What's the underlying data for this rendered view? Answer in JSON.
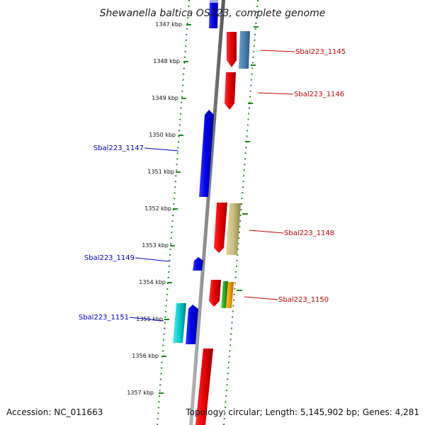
{
  "title": "Shewanella baltica OS223, complete genome",
  "footer": {
    "accession": "Accession: NC_011663",
    "info": "Topology: circular; Length: 5,145,902 bp; Genes: 4,281"
  },
  "ticks": [
    "1347 kbp",
    "1348 kbp",
    "1349 kbp",
    "1350 kbp",
    "1351 kbp",
    "1352 kbp",
    "1353 kbp",
    "1354 kbp",
    "1355 kbp",
    "1356 kbp",
    "1357 kbp"
  ],
  "colors": {
    "forward_label": "#cc0000",
    "reverse_label": "#0000cc",
    "backbone": "#888888",
    "dots": "#228822"
  },
  "genes": [
    {
      "label": "Sbal223_1145",
      "strand": "forward",
      "color": "#cc0000"
    },
    {
      "label": "Sbal223_1146",
      "strand": "forward",
      "color": "#cc0000"
    },
    {
      "label": "Sbal223_1147",
      "strand": "reverse",
      "color": "#0000cc"
    },
    {
      "label": "Sbal223_1148",
      "strand": "forward",
      "color": "#cc0000"
    },
    {
      "label": "Sbal223_1149",
      "strand": "reverse",
      "color": "#0000cc"
    },
    {
      "label": "Sbal223_1150",
      "strand": "forward",
      "color": "#cc0000"
    },
    {
      "label": "Sbal223_1151",
      "strand": "reverse",
      "color": "#0000cc"
    }
  ],
  "feature_colors": {
    "cds_forward": "#ee0000",
    "cds_reverse": "#0000ee",
    "steelblue": "#4a7fb0",
    "khaki": "#c8c080",
    "green": "#22aa22",
    "orange": "#ff9900",
    "cyan": "#00cccc"
  }
}
